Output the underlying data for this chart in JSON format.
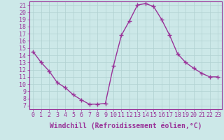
{
  "x": [
    0,
    1,
    2,
    3,
    4,
    5,
    6,
    7,
    8,
    9,
    10,
    11,
    12,
    13,
    14,
    15,
    16,
    17,
    18,
    19,
    20,
    21,
    22,
    23
  ],
  "y": [
    14.5,
    13.0,
    11.8,
    10.2,
    9.5,
    8.5,
    7.8,
    7.2,
    7.2,
    7.3,
    12.5,
    16.8,
    18.8,
    21.0,
    21.2,
    20.8,
    19.0,
    16.8,
    14.2,
    13.0,
    12.2,
    11.5,
    11.0,
    11.0
  ],
  "line_color": "#993399",
  "marker": "+",
  "marker_size": 4,
  "linewidth": 1.0,
  "xlabel": "Windchill (Refroidissement éolien,°C)",
  "xlim": [
    -0.5,
    23.5
  ],
  "ylim": [
    6.5,
    21.5
  ],
  "yticks": [
    7,
    8,
    9,
    10,
    11,
    12,
    13,
    14,
    15,
    16,
    17,
    18,
    19,
    20,
    21
  ],
  "xticks": [
    0,
    1,
    2,
    3,
    4,
    5,
    6,
    7,
    8,
    9,
    10,
    11,
    12,
    13,
    14,
    15,
    16,
    17,
    18,
    19,
    20,
    21,
    22,
    23
  ],
  "bg_color": "#cce8e8",
  "grid_color": "#b0d0d0",
  "line_border_color": "#993399",
  "tick_label_color": "#993399",
  "xlabel_color": "#993399",
  "font_size": 6,
  "xlabel_fontsize": 7
}
